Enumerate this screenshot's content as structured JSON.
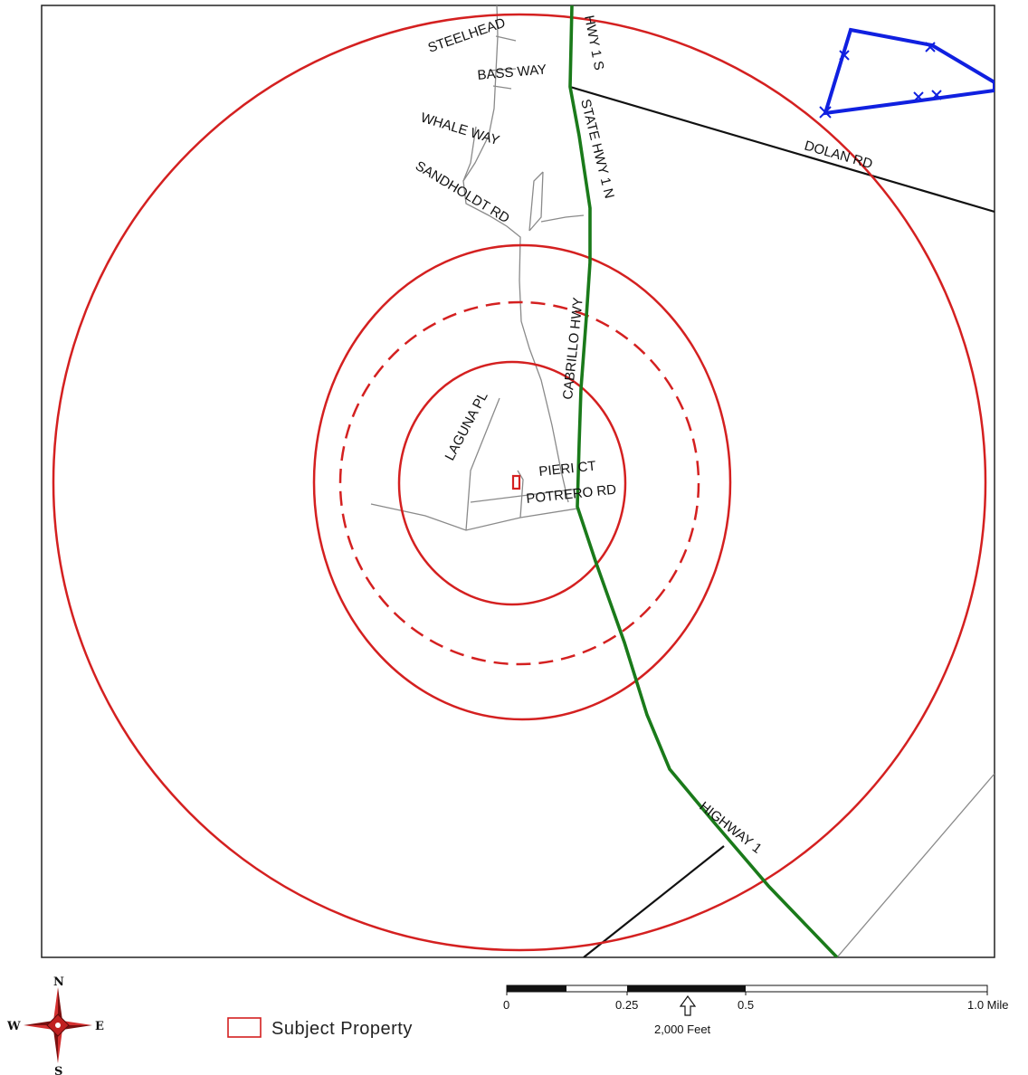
{
  "map": {
    "roads": {
      "steelhead": "STEELHEAD",
      "bass_way": "BASS WAY",
      "hwy_1_s": "HWY 1 S",
      "state_hwy_1_n": "STATE HWY 1 N",
      "whale_way": "WHALE WAY",
      "sandholdt_rd": "SANDHOLDT RD",
      "dolan_rd": "DOLAN RD",
      "cabrillo_hwy": "CABRILLO HWY",
      "laguna_pl": "LAGUNA PL",
      "pieri_ct": "PIERI CT",
      "potrero_rd": "POTRERO RD",
      "highway_1": "HIGHWAY 1"
    },
    "colors": {
      "buffer_rings": "#d42020",
      "highway": "#1a7a1a",
      "boundary": "#1020e0",
      "roads_major": "#111111",
      "roads_minor": "#8a8a8a"
    }
  },
  "compass": {
    "north": "N",
    "south": "S",
    "east": "E",
    "west": "W"
  },
  "legend": {
    "subject_property": "Subject Property"
  },
  "scale_bar": {
    "tick_0": "0",
    "tick_025": "0.25",
    "tick_05": "0.5",
    "tick_1": "1.0 Mile",
    "feet_label": "2,000 Feet"
  }
}
